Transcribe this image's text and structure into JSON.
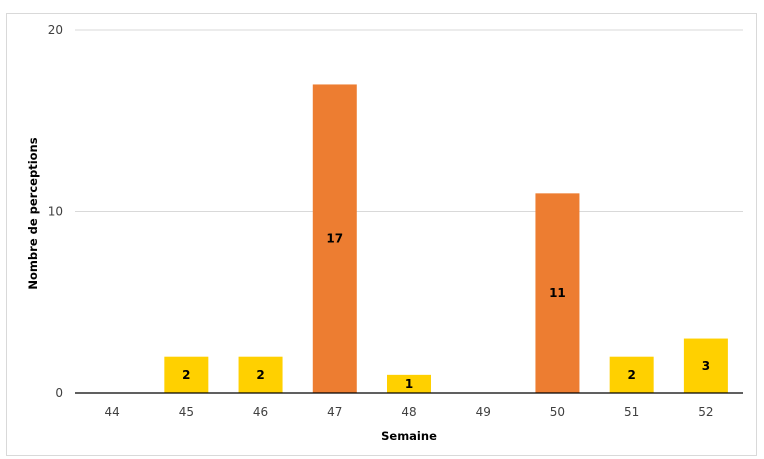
{
  "chart_data": {
    "type": "bar",
    "xlabel": "Semaine",
    "ylabel": "Nombre de perceptions",
    "ylim": [
      0,
      20
    ],
    "yticks": [
      0,
      10,
      20
    ],
    "categories": [
      "44",
      "45",
      "46",
      "47",
      "48",
      "49",
      "50",
      "51",
      "52"
    ],
    "values": [
      0,
      2,
      2,
      17,
      1,
      0,
      11,
      2,
      3
    ],
    "bar_colors": [
      "#FFD000",
      "#FFD000",
      "#FFD000",
      "#ED7D31",
      "#FFD000",
      "#FFD000",
      "#ED7D31",
      "#FFD000",
      "#FFD000"
    ],
    "data_labels": [
      "",
      "2",
      "2",
      "17",
      "1",
      "",
      "11",
      "2",
      "3"
    ],
    "grid": true,
    "legend": "none",
    "colors": {
      "high": "#ED7D31",
      "low": "#FFD000",
      "gridline": "#d9d9d9",
      "axis": "#000000"
    }
  }
}
